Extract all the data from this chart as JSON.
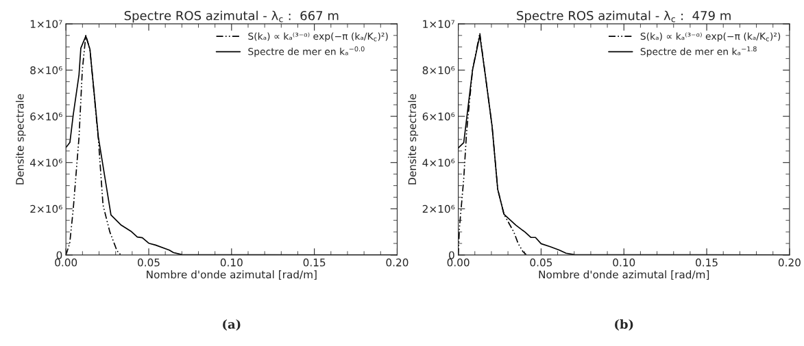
{
  "chart_data": [
    {
      "type": "line",
      "title": "Spectre ROS azimutal - λ$_{c}$ :  667 m",
      "xlabel": "Nombre d'onde azimutal [rad/m]",
      "ylabel": "Densite spectrale",
      "xlim": [
        0,
        0.2
      ],
      "xticks": [
        {
          "value": 0,
          "label": "0.00"
        },
        {
          "value": 0.05,
          "label": "0.05"
        },
        {
          "value": 0.1,
          "label": "0.10"
        },
        {
          "value": 0.15,
          "label": "0.15"
        },
        {
          "value": 0.2,
          "label": "0.20"
        }
      ],
      "ylim": [
        0,
        10000000
      ],
      "yticks": [
        {
          "value": 0,
          "label": "0"
        },
        {
          "value": 2000000,
          "label": "2×10⁶"
        },
        {
          "value": 4000000,
          "label": "4×10⁶"
        },
        {
          "value": 6000000,
          "label": "6×10⁶"
        },
        {
          "value": 8000000,
          "label": "8×10⁶"
        },
        {
          "value": 10000000,
          "label": "1×10⁷"
        }
      ],
      "grid": false,
      "legend": "top right",
      "annotations": [
        "(a)"
      ],
      "series": [
        {
          "name": "S(kₐ) ∝ kₐ⁽³⁻ᵅ⁾ exp(−π (kₐ/K$_{c}$)²)",
          "color": "#000000",
          "line_style": "dashdot",
          "x": [
            0,
            0.0023,
            0.0044,
            0.0079,
            0.0099,
            0.012,
            0.0145,
            0.0196,
            0.0224,
            0.0265,
            0.0307,
            0.032,
            0.034
          ],
          "values": [
            0,
            510000,
            1970000,
            5090000,
            8000000,
            9500000,
            8900000,
            5000000,
            2160000,
            1000000,
            210000,
            70000,
            0
          ]
        },
        {
          "name": "Spectre de mer en kₐ$^{−0.0}$",
          "color": "#000000",
          "line_style": "solid",
          "x": [
            0,
            0.0024,
            0.0044,
            0.0079,
            0.009,
            0.012,
            0.0145,
            0.0196,
            0.0272,
            0.0334,
            0.0396,
            0.0431,
            0.0461,
            0.05,
            0.0541,
            0.0624,
            0.065,
            0.07,
            0.2
          ],
          "values": [
            4650000,
            4870000,
            6060000,
            7800000,
            8950000,
            9470000,
            8900000,
            5090000,
            1730000,
            1290000,
            1010000,
            780000,
            750000,
            510000,
            430000,
            210000,
            100000,
            20000,
            0
          ]
        }
      ]
    },
    {
      "type": "line",
      "title": "Spectre ROS azimutal - λ$_{c}$ :  479 m",
      "xlabel": "Nombre d'onde azimutal [rad/m]",
      "ylabel": "Densite spectrale",
      "xlim": [
        0,
        0.2
      ],
      "xticks": [
        {
          "value": 0,
          "label": "0.00"
        },
        {
          "value": 0.05,
          "label": "0.05"
        },
        {
          "value": 0.1,
          "label": "0.10"
        },
        {
          "value": 0.15,
          "label": "0.15"
        },
        {
          "value": 0.2,
          "label": "0.20"
        }
      ],
      "ylim": [
        0,
        10000000
      ],
      "yticks": [
        {
          "value": 0,
          "label": "0"
        },
        {
          "value": 2000000,
          "label": "2×10⁶"
        },
        {
          "value": 4000000,
          "label": "4×10⁶"
        },
        {
          "value": 6000000,
          "label": "6×10⁶"
        },
        {
          "value": 8000000,
          "label": "8×10⁶"
        },
        {
          "value": 10000000,
          "label": "1×10⁷"
        }
      ],
      "grid": false,
      "legend": "top right",
      "annotations": [
        "(b)"
      ],
      "series": [
        {
          "name": "S(kₐ) ∝ kₐ⁽³⁻ᵅ⁾ exp(−π (kₐ/K$_{c}$)²)",
          "color": "#000000",
          "line_style": "dashdot",
          "x": [
            0,
            0.0007,
            0.0033,
            0.005,
            0.0086,
            0.013,
            0.0163,
            0.0204,
            0.0238,
            0.0276,
            0.0335,
            0.0362,
            0.039,
            0.041
          ],
          "values": [
            0,
            1170000,
            3300000,
            5300000,
            8000000,
            9600000,
            7800000,
            5580000,
            2850000,
            1760000,
            1000000,
            490000,
            150000,
            20000
          ]
        },
        {
          "name": "Spectre de mer en kₐ$^{−1.8}$",
          "color": "#000000",
          "line_style": "solid",
          "x": [
            0,
            0.0033,
            0.0086,
            0.013,
            0.0163,
            0.0204,
            0.0238,
            0.0276,
            0.0348,
            0.0403,
            0.0438,
            0.0466,
            0.05,
            0.0555,
            0.061,
            0.065,
            0.07,
            0.2
          ],
          "values": [
            4630000,
            4860000,
            8000000,
            9500000,
            7800000,
            5580000,
            2850000,
            1760000,
            1290000,
            990000,
            760000,
            760000,
            490000,
            360000,
            210000,
            80000,
            20000,
            0
          ]
        }
      ]
    }
  ]
}
